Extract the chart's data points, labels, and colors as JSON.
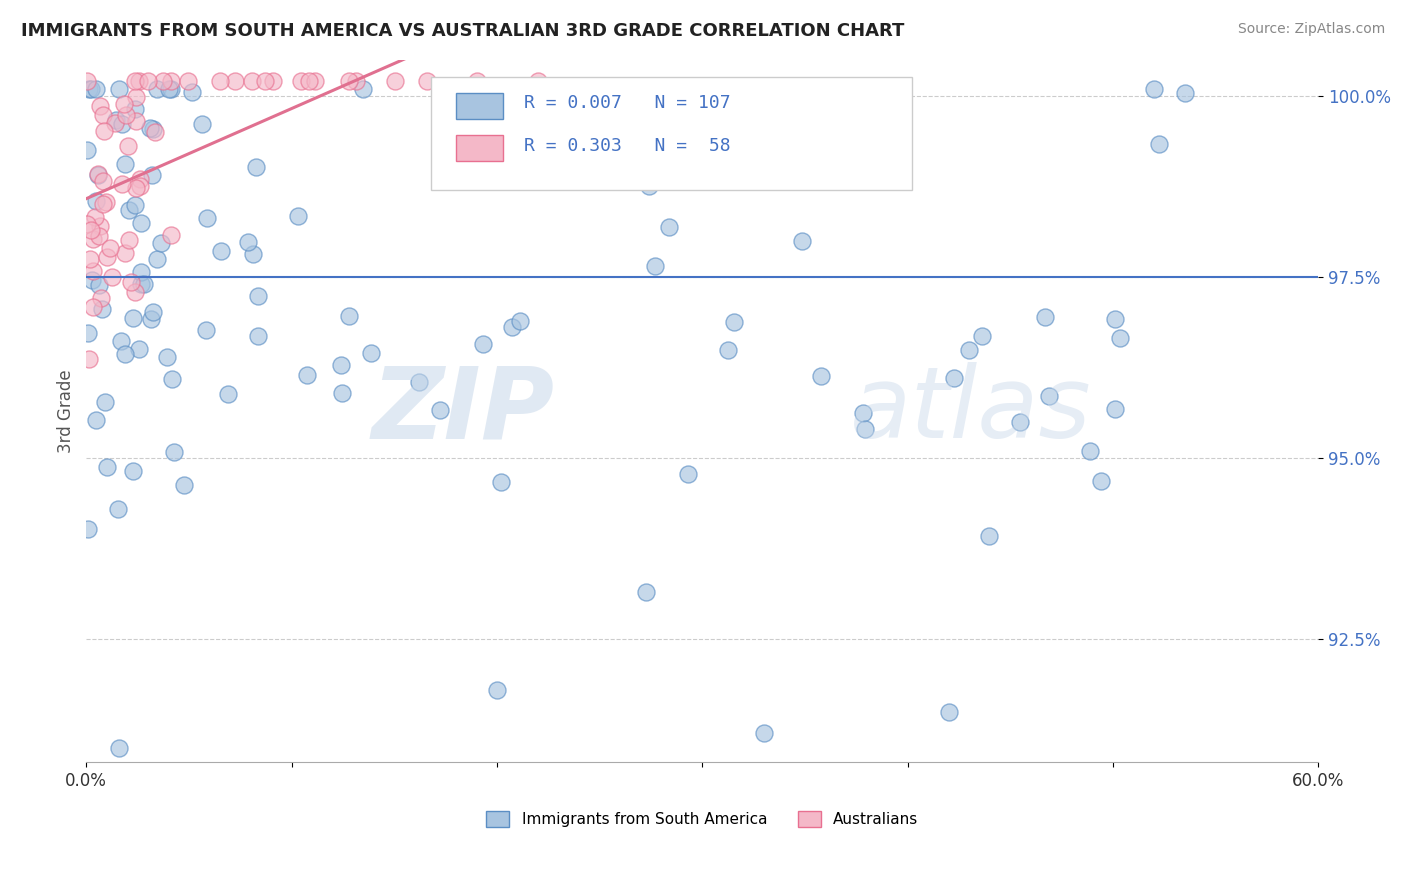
{
  "title": "IMMIGRANTS FROM SOUTH AMERICA VS AUSTRALIAN 3RD GRADE CORRELATION CHART",
  "source": "Source: ZipAtlas.com",
  "ylabel": "3rd Grade",
  "xlim": [
    0.0,
    0.6
  ],
  "ylim": [
    0.908,
    1.005
  ],
  "yticks": [
    0.925,
    0.95,
    0.975,
    1.0
  ],
  "ytick_labels": [
    "92.5%",
    "95.0%",
    "97.5%",
    "100.0%"
  ],
  "xtick_positions": [
    0.0,
    0.1,
    0.2,
    0.3,
    0.4,
    0.5,
    0.6
  ],
  "xtick_labels": [
    "0.0%",
    "",
    "",
    "",
    "",
    "",
    "60.0%"
  ],
  "legend_blue_label": "Immigrants from South America",
  "legend_pink_label": "Australians",
  "R_blue": 0.007,
  "N_blue": 107,
  "R_pink": 0.303,
  "N_pink": 58,
  "hline_y": 0.975,
  "hline_color": "#4472C4",
  "dot_color_blue": "#a8c4e0",
  "dot_edge_blue": "#5b8ec4",
  "dot_color_pink": "#f4b8c8",
  "dot_edge_pink": "#e87090",
  "trend_color_pink": "#e07090",
  "watermark_zip": "ZIP",
  "watermark_atlas": "atlas",
  "title_fontsize": 13,
  "source_fontsize": 10,
  "axis_label_color": "#555555"
}
